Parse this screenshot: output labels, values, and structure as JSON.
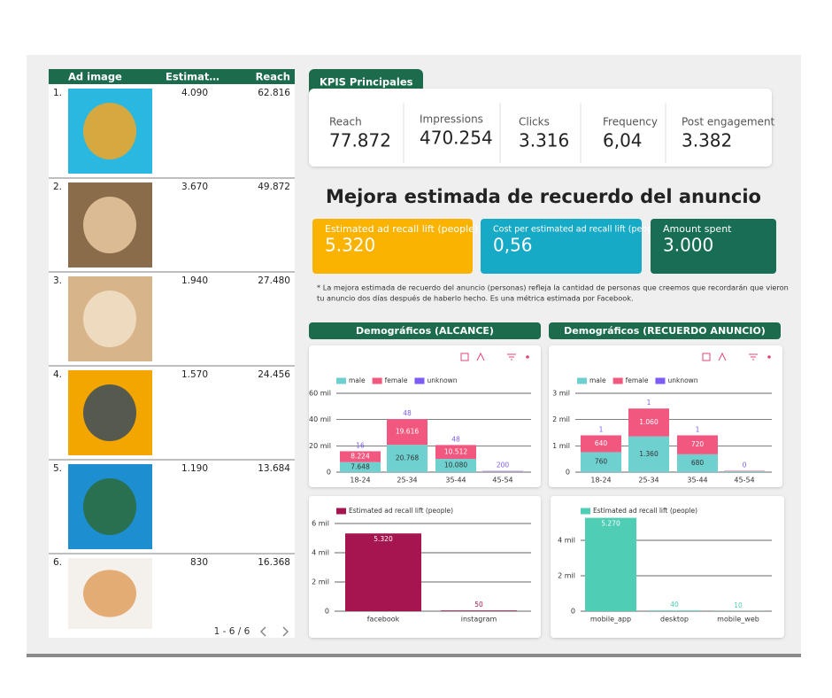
{
  "table": {
    "columns": [
      "Ad image",
      "Estimat…",
      "Reach"
    ],
    "rows": [
      [
        "1.",
        "4.090",
        "62.816"
      ],
      [
        "2.",
        "3.670",
        "49.872"
      ],
      [
        "3.",
        "1.940",
        "27.480"
      ],
      [
        "4.",
        "1.570",
        "24.456"
      ],
      [
        "5.",
        "1.190",
        "13.684"
      ],
      [
        "6.",
        "830",
        "16.368"
      ]
    ],
    "pagination": "1 - 6 / 6"
  },
  "kpis": {
    "tab": "KPIS Principales",
    "items": [
      {
        "label": "Reach",
        "value": "77.872"
      },
      {
        "label": "Impressions",
        "value": "470.254"
      },
      {
        "label": "Clicks",
        "value": "3.316"
      },
      {
        "label": "Frequency",
        "value": "6,04"
      },
      {
        "label": "Post engagement",
        "value": "3.382"
      }
    ]
  },
  "headline": "Mejora estimada de recuerdo del anuncio",
  "cards": [
    {
      "label": "Estimated ad recall lift (people)",
      "value": "5.320",
      "color": "#f9b300"
    },
    {
      "label": "Cost per estimated ad recall lift (people)",
      "value": "0,56",
      "color": "#17aac6"
    },
    {
      "label": "Amount spent",
      "value": "3.000",
      "color": "#176e55"
    }
  ],
  "note": [
    "* La mejora estimada de recuerdo del anuncio (personas) refleja la cantidad de personas que creemos que recordarán que vieron",
    "tu anuncio dos días después de haberlo hecho. Es una métrica estimada por Facebook."
  ],
  "panels": [
    "Demográficos (ALCANCE)",
    "Demográficos (RECUERDO ANUNCIO)"
  ],
  "chart_data": [
    {
      "type": "bar",
      "stacked": true,
      "categories": [
        "18-24",
        "25-34",
        "35-44",
        "45-54"
      ],
      "series": [
        {
          "name": "male",
          "color": "#6fd0d0",
          "values": [
            7648,
            20768,
            10080,
            400
          ],
          "value_labels": [
            "7.648",
            "20.768",
            "10.080",
            null
          ]
        },
        {
          "name": "female",
          "color": "#f2587f",
          "values": [
            8224,
            19616,
            10512,
            300
          ],
          "value_labels": [
            "8.224",
            "19.616",
            "10.512",
            null
          ]
        },
        {
          "name": "unknown",
          "color": "#7d5bf5",
          "values": [
            16,
            48,
            48,
            200
          ],
          "value_labels": [
            "16",
            "48",
            "48",
            "200"
          ]
        }
      ],
      "ylim": [
        0,
        60000
      ],
      "yticks": [
        0,
        {
          "value": 20000,
          "label": "20 mil"
        },
        {
          "value": 40000,
          "label": "40 mil"
        },
        {
          "value": 60000,
          "label": "60 mil"
        }
      ],
      "grid": true
    },
    {
      "type": "bar",
      "stacked": true,
      "categories": [
        "18-24",
        "25-34",
        "35-44",
        "45-54"
      ],
      "series": [
        {
          "name": "male",
          "color": "#6fd0d0",
          "values": [
            760,
            1360,
            680,
            30
          ],
          "value_labels": [
            "760",
            "1.360",
            "680",
            null
          ]
        },
        {
          "name": "female",
          "color": "#f2587f",
          "values": [
            640,
            1060,
            720,
            20
          ],
          "value_labels": [
            "640",
            "1.060",
            "720",
            null
          ]
        },
        {
          "name": "unknown",
          "color": "#7d5bf5",
          "values": [
            1,
            1,
            1,
            0
          ],
          "value_labels": [
            "1",
            "1",
            "1",
            "0"
          ]
        }
      ],
      "ylim": [
        0,
        3000
      ],
      "yticks": [
        0,
        {
          "value": 1000,
          "label": "1 mil"
        },
        {
          "value": 2000,
          "label": "2 mil"
        },
        {
          "value": 3000,
          "label": "3 mil"
        }
      ],
      "grid": true
    },
    {
      "type": "bar",
      "categories": [
        "facebook",
        "instagram"
      ],
      "series": [
        {
          "name": "Estimated ad recall lift (people)",
          "color": "#a5154f",
          "values": [
            5320,
            50
          ],
          "value_labels": [
            "5.320",
            "50"
          ]
        }
      ],
      "ylim": [
        0,
        6000
      ],
      "yticks": [
        0,
        {
          "value": 2000,
          "label": "2 mil"
        },
        {
          "value": 4000,
          "label": "4 mil"
        },
        {
          "value": 6000,
          "label": "6 mil"
        }
      ],
      "grid": true
    },
    {
      "type": "bar",
      "categories": [
        "mobile_app",
        "desktop",
        "mobile_web"
      ],
      "series": [
        {
          "name": "Estimated ad recall lift (people)",
          "color": "#4fcdb5",
          "values": [
            5270,
            40,
            10
          ],
          "value_labels": [
            "5.270",
            "40",
            "10"
          ]
        }
      ],
      "ylim": [
        0,
        5000
      ],
      "yticks": [
        0,
        {
          "value": 2000,
          "label": "2 mil"
        },
        {
          "value": 4000,
          "label": "4 mil"
        }
      ],
      "grid": true
    }
  ]
}
